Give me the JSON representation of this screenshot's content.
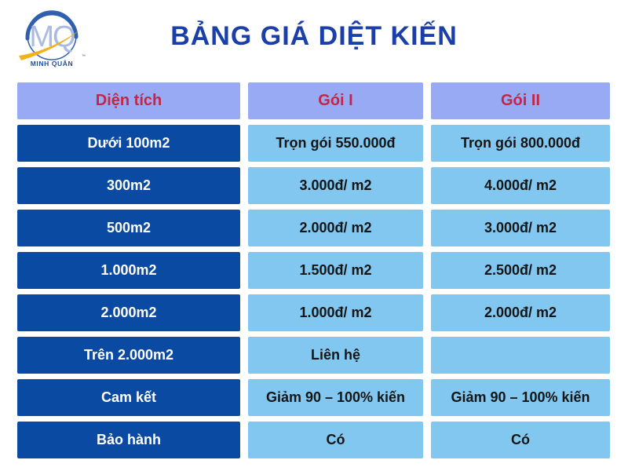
{
  "logo": {
    "initials": "MQ",
    "brand": "MINH QUÂN",
    "trademark": "™"
  },
  "title": "BẢNG GIÁ DIỆT KIẾN",
  "colors": {
    "title_text": "#1a3fa8",
    "header_bg": "#97aaf3",
    "header_text": "#c02749",
    "dark_cell_bg": "#0b4aa2",
    "dark_cell_text": "#ffffff",
    "light_cell_bg": "#82c7f0",
    "light_cell_text": "#151515",
    "logo_ring": "#2f5fae",
    "logo_letters": "#a9bbe2",
    "logo_swoosh": "#f2b21c"
  },
  "table": {
    "headers": [
      "Diện tích",
      "Gói I",
      "Gói II"
    ],
    "rows": [
      {
        "area": "Dưới 100m2",
        "goi1": "Trọn gói 550.000đ",
        "goi2": "Trọn gói 800.000đ"
      },
      {
        "area": "300m2",
        "goi1": "3.000đ/ m2",
        "goi2": "4.000đ/ m2"
      },
      {
        "area": "500m2",
        "goi1": "2.000đ/ m2",
        "goi2": "3.000đ/ m2"
      },
      {
        "area": "1.000m2",
        "goi1": "1.500đ/ m2",
        "goi2": "2.500đ/ m2"
      },
      {
        "area": "2.000m2",
        "goi1": "1.000đ/ m2",
        "goi2": "2.000đ/ m2"
      },
      {
        "area": "Trên 2.000m2",
        "goi1": "Liên hệ",
        "goi2": ""
      },
      {
        "area": "Cam kết",
        "goi1": "Giảm 90 – 100% kiến",
        "goi2": "Giảm 90 – 100% kiến"
      },
      {
        "area": "Bảo hành",
        "goi1": "Có",
        "goi2": "Có"
      }
    ]
  }
}
